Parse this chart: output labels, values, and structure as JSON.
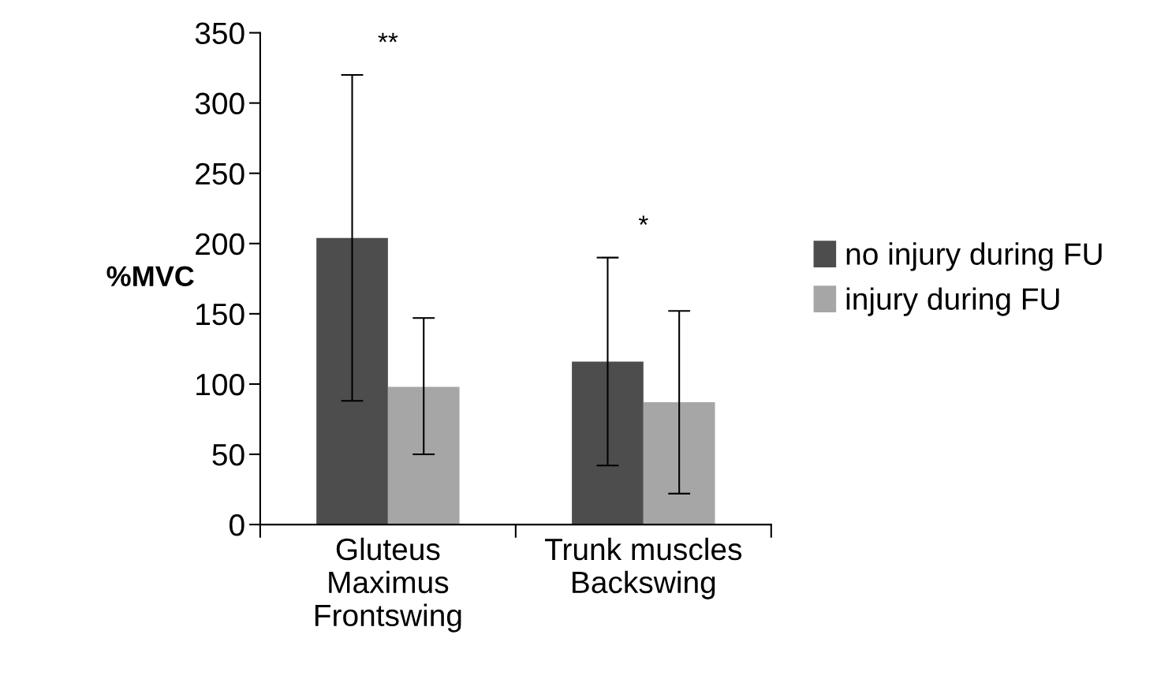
{
  "chart_data": {
    "type": "bar",
    "ylabel": "%MVC",
    "categories": [
      "Gluteus\nMaximus\nFrontswing",
      "Trunk muscles\nBackswing"
    ],
    "series": [
      {
        "name": "no injury during FU",
        "color": "#4d4d4d",
        "values": [
          204,
          116
        ],
        "errors": [
          [
            88,
            320
          ],
          [
            42,
            190
          ]
        ]
      },
      {
        "name": "injury during FU",
        "color": "#a6a6a6",
        "values": [
          98,
          87
        ],
        "errors": [
          [
            50,
            147
          ],
          [
            22,
            152
          ]
        ]
      }
    ],
    "ylim": [
      0,
      350
    ],
    "yticks": [
      0,
      50,
      100,
      150,
      200,
      250,
      300,
      350
    ],
    "annotations": [
      "**",
      "*"
    ],
    "grid": false,
    "legend": "right"
  }
}
